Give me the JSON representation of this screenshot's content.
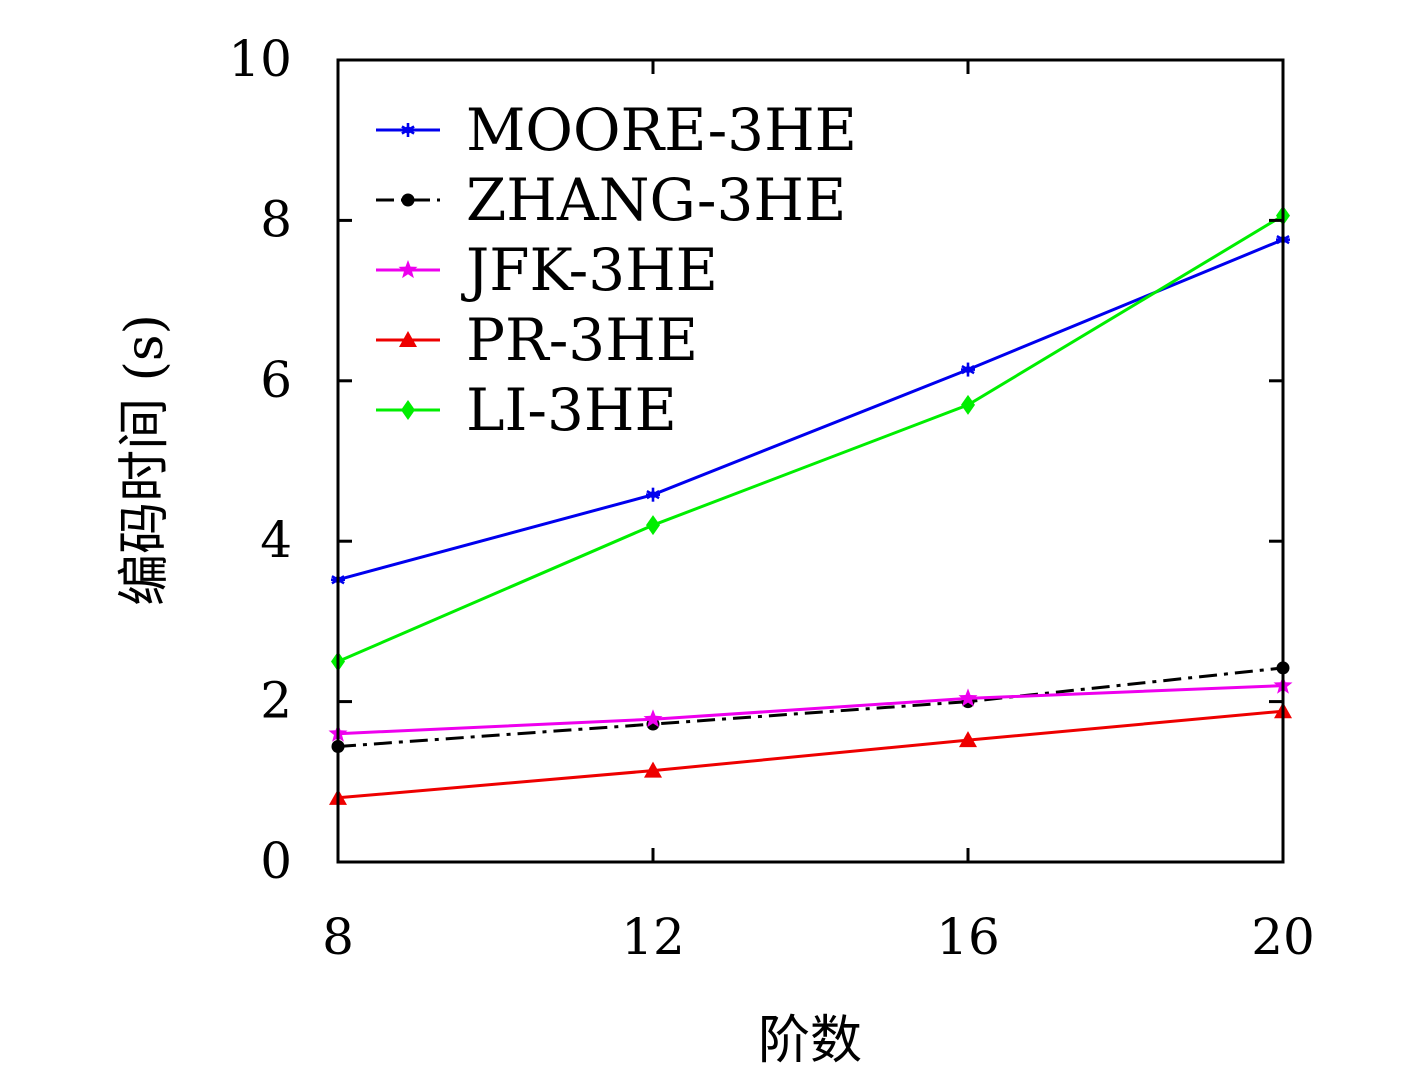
{
  "chart_data": {
    "type": "line",
    "title": "",
    "xlabel": "阶数",
    "ylabel": "编码时间 (s)",
    "x": [
      8,
      12,
      16,
      20
    ],
    "xlim": [
      8,
      20
    ],
    "ylim": [
      0,
      10
    ],
    "xticks": [
      "8",
      "12",
      "16",
      "20"
    ],
    "yticks": [
      "0",
      "2",
      "4",
      "6",
      "8",
      "10"
    ],
    "grid": false,
    "legend_position": "top-left",
    "series": [
      {
        "name": "MOORE-3HE",
        "values": [
          3.52,
          4.58,
          6.14,
          7.76
        ],
        "color": "#0000ee",
        "marker": "asterisk",
        "dash": "solid"
      },
      {
        "name": "ZHANG-3HE",
        "values": [
          1.44,
          1.72,
          2.0,
          2.42
        ],
        "color": "#000000",
        "marker": "circle",
        "dash": "dashdot"
      },
      {
        "name": "JFK-3HE",
        "values": [
          1.6,
          1.78,
          2.04,
          2.2
        ],
        "color": "#ee00ee",
        "marker": "star",
        "dash": "solid"
      },
      {
        "name": "PR-3HE",
        "values": [
          0.8,
          1.14,
          1.52,
          1.88
        ],
        "color": "#ee0000",
        "marker": "triangle",
        "dash": "solid"
      },
      {
        "name": "LI-3HE",
        "values": [
          2.5,
          4.2,
          5.7,
          8.06
        ],
        "color": "#00ee00",
        "marker": "diamond",
        "dash": "solid"
      }
    ]
  }
}
